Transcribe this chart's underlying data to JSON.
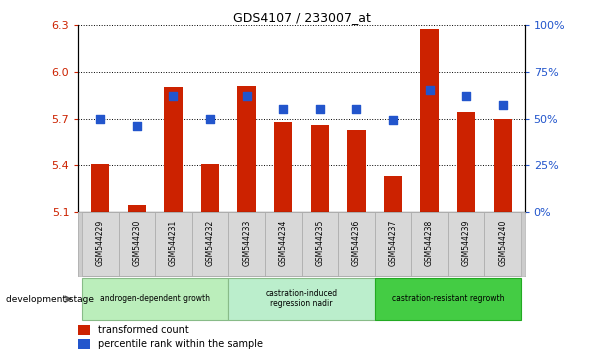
{
  "title": "GDS4107 / 233007_at",
  "samples": [
    "GSM544229",
    "GSM544230",
    "GSM544231",
    "GSM544232",
    "GSM544233",
    "GSM544234",
    "GSM544235",
    "GSM544236",
    "GSM544237",
    "GSM544238",
    "GSM544239",
    "GSM544240"
  ],
  "transformed_count": [
    5.41,
    5.15,
    5.9,
    5.41,
    5.91,
    5.68,
    5.66,
    5.63,
    5.33,
    6.27,
    5.74,
    5.7
  ],
  "percentile_rank": [
    50,
    46,
    62,
    50,
    62,
    55,
    55,
    55,
    49,
    65,
    62,
    57
  ],
  "ylim_left": [
    5.1,
    6.3
  ],
  "ylim_right": [
    0,
    100
  ],
  "yticks_left": [
    5.1,
    5.4,
    5.7,
    6.0,
    6.3
  ],
  "yticks_right": [
    0,
    25,
    50,
    75,
    100
  ],
  "ytick_labels_right": [
    "0%",
    "25%",
    "50%",
    "75%",
    "100%"
  ],
  "bar_color": "#cc2200",
  "dot_color": "#2255cc",
  "base_value": 5.1,
  "bar_width": 0.5,
  "dot_size": 40,
  "groups_info": [
    {
      "label": "androgen-dependent growth",
      "start": 0,
      "end": 3,
      "color": "#bbeebb",
      "border": "#88bb88"
    },
    {
      "label": "castration-induced\nregression nadir",
      "start": 4,
      "end": 7,
      "color": "#bbeecc",
      "border": "#88bb88"
    },
    {
      "label": "castration-resistant regrowth",
      "start": 8,
      "end": 11,
      "color": "#44cc44",
      "border": "#22aa22"
    }
  ],
  "legend_items": [
    {
      "label": "transformed count",
      "color": "#cc2200"
    },
    {
      "label": "percentile rank within the sample",
      "color": "#2255cc"
    }
  ]
}
